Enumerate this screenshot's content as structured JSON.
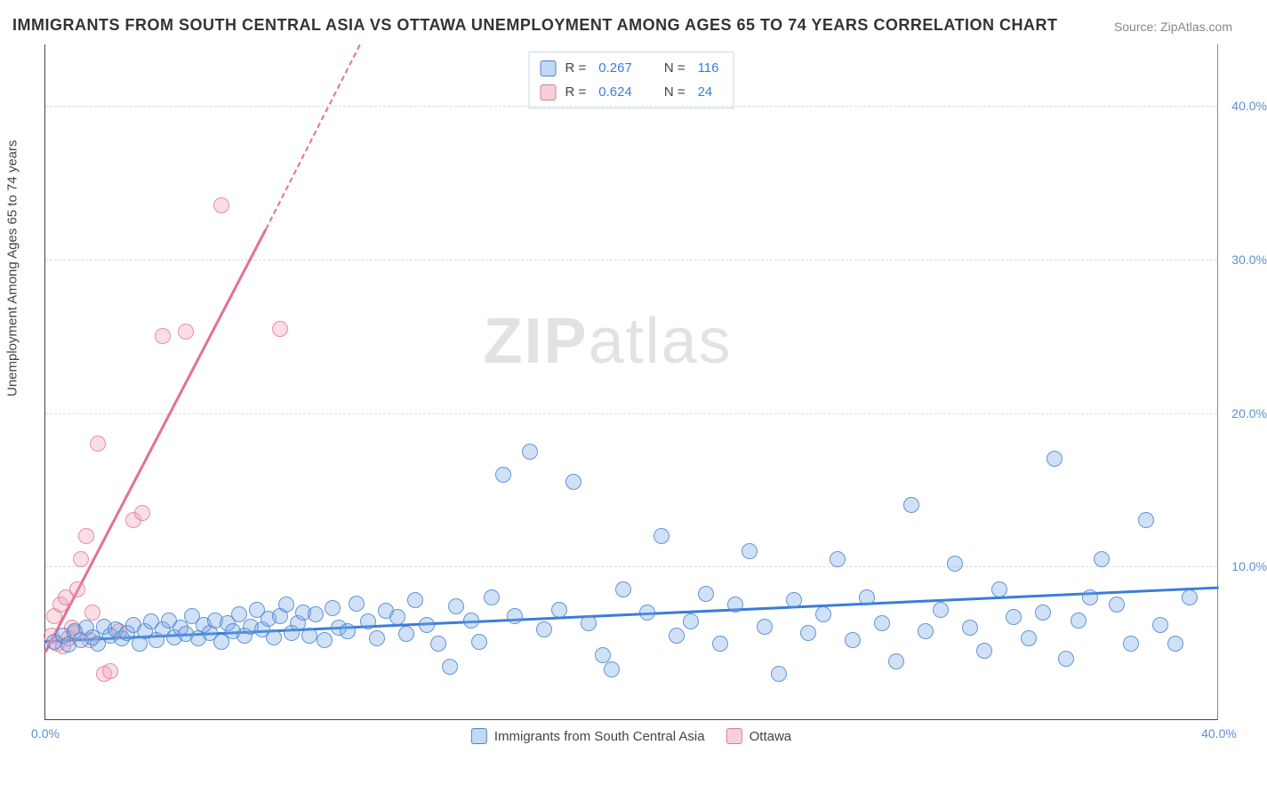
{
  "title": "IMMIGRANTS FROM SOUTH CENTRAL ASIA VS OTTAWA UNEMPLOYMENT AMONG AGES 65 TO 74 YEARS CORRELATION CHART",
  "source_label": "Source:",
  "source_value": "ZipAtlas.com",
  "watermark_bold": "ZIP",
  "watermark_light": "atlas",
  "y_axis_title": "Unemployment Among Ages 65 to 74 years",
  "chart": {
    "type": "scatter",
    "background_color": "#ffffff",
    "grid_color": "#dcdcdc",
    "xlim": [
      0,
      40
    ],
    "ylim": [
      0,
      44
    ],
    "x_ticks": [
      {
        "val": 0,
        "label": "0.0%"
      },
      {
        "val": 40,
        "label": "40.0%"
      }
    ],
    "y_ticks": [
      {
        "val": 10,
        "label": "10.0%"
      },
      {
        "val": 20,
        "label": "20.0%"
      },
      {
        "val": 30,
        "label": "30.0%"
      },
      {
        "val": 40,
        "label": "40.0%"
      }
    ],
    "series": [
      {
        "name": "Immigrants from South Central Asia",
        "color_fill": "rgba(120,170,230,0.35)",
        "color_stroke": "#4a84d4",
        "marker_size_px": 18,
        "r_value": "0.267",
        "n_value": "116",
        "trend": {
          "x0": 0,
          "y0": 5.2,
          "x1": 40,
          "y1": 8.7,
          "color": "#3b7dd8"
        },
        "points": [
          [
            0.3,
            5.1
          ],
          [
            0.6,
            5.5
          ],
          [
            0.8,
            4.9
          ],
          [
            1.0,
            5.8
          ],
          [
            1.2,
            5.2
          ],
          [
            1.4,
            6.0
          ],
          [
            1.6,
            5.4
          ],
          [
            1.8,
            5.0
          ],
          [
            2.0,
            6.1
          ],
          [
            2.2,
            5.5
          ],
          [
            2.4,
            5.9
          ],
          [
            2.6,
            5.3
          ],
          [
            2.8,
            5.7
          ],
          [
            3.0,
            6.2
          ],
          [
            3.2,
            5.0
          ],
          [
            3.4,
            5.8
          ],
          [
            3.6,
            6.4
          ],
          [
            3.8,
            5.2
          ],
          [
            4.0,
            5.9
          ],
          [
            4.2,
            6.5
          ],
          [
            4.4,
            5.4
          ],
          [
            4.6,
            6.0
          ],
          [
            4.8,
            5.6
          ],
          [
            5.0,
            6.8
          ],
          [
            5.2,
            5.3
          ],
          [
            5.4,
            6.2
          ],
          [
            5.6,
            5.7
          ],
          [
            5.8,
            6.5
          ],
          [
            6.0,
            5.1
          ],
          [
            6.2,
            6.3
          ],
          [
            6.4,
            5.8
          ],
          [
            6.6,
            6.9
          ],
          [
            6.8,
            5.5
          ],
          [
            7.0,
            6.1
          ],
          [
            7.2,
            7.2
          ],
          [
            7.4,
            5.9
          ],
          [
            7.6,
            6.6
          ],
          [
            7.8,
            5.4
          ],
          [
            8.0,
            6.8
          ],
          [
            8.2,
            7.5
          ],
          [
            8.4,
            5.7
          ],
          [
            8.6,
            6.3
          ],
          [
            8.8,
            7.0
          ],
          [
            9.0,
            5.5
          ],
          [
            9.2,
            6.9
          ],
          [
            9.5,
            5.2
          ],
          [
            9.8,
            7.3
          ],
          [
            10.0,
            6.0
          ],
          [
            10.3,
            5.8
          ],
          [
            10.6,
            7.6
          ],
          [
            11.0,
            6.4
          ],
          [
            11.3,
            5.3
          ],
          [
            11.6,
            7.1
          ],
          [
            12.0,
            6.7
          ],
          [
            12.3,
            5.6
          ],
          [
            12.6,
            7.8
          ],
          [
            13.0,
            6.2
          ],
          [
            13.4,
            5.0
          ],
          [
            13.8,
            3.5
          ],
          [
            14.0,
            7.4
          ],
          [
            14.5,
            6.5
          ],
          [
            14.8,
            5.1
          ],
          [
            15.2,
            8.0
          ],
          [
            15.6,
            16.0
          ],
          [
            16.0,
            6.8
          ],
          [
            16.5,
            17.5
          ],
          [
            17.0,
            5.9
          ],
          [
            17.5,
            7.2
          ],
          [
            18.0,
            15.5
          ],
          [
            18.5,
            6.3
          ],
          [
            19.0,
            4.2
          ],
          [
            19.3,
            3.3
          ],
          [
            19.7,
            8.5
          ],
          [
            20.5,
            7.0
          ],
          [
            21.0,
            12.0
          ],
          [
            21.5,
            5.5
          ],
          [
            22.0,
            6.4
          ],
          [
            22.5,
            8.2
          ],
          [
            23.0,
            5.0
          ],
          [
            23.5,
            7.5
          ],
          [
            24.0,
            11.0
          ],
          [
            24.5,
            6.1
          ],
          [
            25.0,
            3.0
          ],
          [
            25.5,
            7.8
          ],
          [
            26.0,
            5.7
          ],
          [
            26.5,
            6.9
          ],
          [
            27.0,
            10.5
          ],
          [
            27.5,
            5.2
          ],
          [
            28.0,
            8.0
          ],
          [
            28.5,
            6.3
          ],
          [
            29.0,
            3.8
          ],
          [
            29.5,
            14.0
          ],
          [
            30.0,
            5.8
          ],
          [
            30.5,
            7.2
          ],
          [
            31.0,
            10.2
          ],
          [
            31.5,
            6.0
          ],
          [
            32.0,
            4.5
          ],
          [
            32.5,
            8.5
          ],
          [
            33.0,
            6.7
          ],
          [
            33.5,
            5.3
          ],
          [
            34.0,
            7.0
          ],
          [
            34.4,
            17.0
          ],
          [
            34.8,
            4.0
          ],
          [
            35.2,
            6.5
          ],
          [
            35.6,
            8.0
          ],
          [
            36.0,
            10.5
          ],
          [
            36.5,
            7.5
          ],
          [
            37.0,
            5.0
          ],
          [
            37.5,
            13.0
          ],
          [
            38.0,
            6.2
          ],
          [
            38.5,
            5.0
          ],
          [
            39.0,
            8.0
          ]
        ]
      },
      {
        "name": "Ottawa",
        "color_fill": "rgba(240,160,180,0.35)",
        "color_stroke": "#e07897",
        "marker_size_px": 18,
        "r_value": "0.624",
        "n_value": "24",
        "trend": {
          "x0": 0,
          "y0": 4.5,
          "x1": 7.5,
          "y1": 32.0,
          "color": "#e66f93",
          "dash_after_x": 7.5,
          "dash_x1": 10.7,
          "dash_y1": 44.0
        },
        "points": [
          [
            0.2,
            5.5
          ],
          [
            0.3,
            6.8
          ],
          [
            0.4,
            5.0
          ],
          [
            0.5,
            7.5
          ],
          [
            0.6,
            4.8
          ],
          [
            0.7,
            8.0
          ],
          [
            0.8,
            5.3
          ],
          [
            0.9,
            6.0
          ],
          [
            1.0,
            5.7
          ],
          [
            1.1,
            8.5
          ],
          [
            1.2,
            10.5
          ],
          [
            1.4,
            12.0
          ],
          [
            1.5,
            5.2
          ],
          [
            1.6,
            7.0
          ],
          [
            1.8,
            18.0
          ],
          [
            2.0,
            3.0
          ],
          [
            2.2,
            3.2
          ],
          [
            2.5,
            5.8
          ],
          [
            3.0,
            13.0
          ],
          [
            3.3,
            13.5
          ],
          [
            4.0,
            25.0
          ],
          [
            4.8,
            25.3
          ],
          [
            6.0,
            33.5
          ],
          [
            8.0,
            25.5
          ]
        ]
      }
    ],
    "legend_top": {
      "r_label": "R =",
      "n_label": "N ="
    },
    "legend_bottom": [
      {
        "key": "blue",
        "label": "Immigrants from South Central Asia"
      },
      {
        "key": "pink",
        "label": "Ottawa"
      }
    ]
  }
}
